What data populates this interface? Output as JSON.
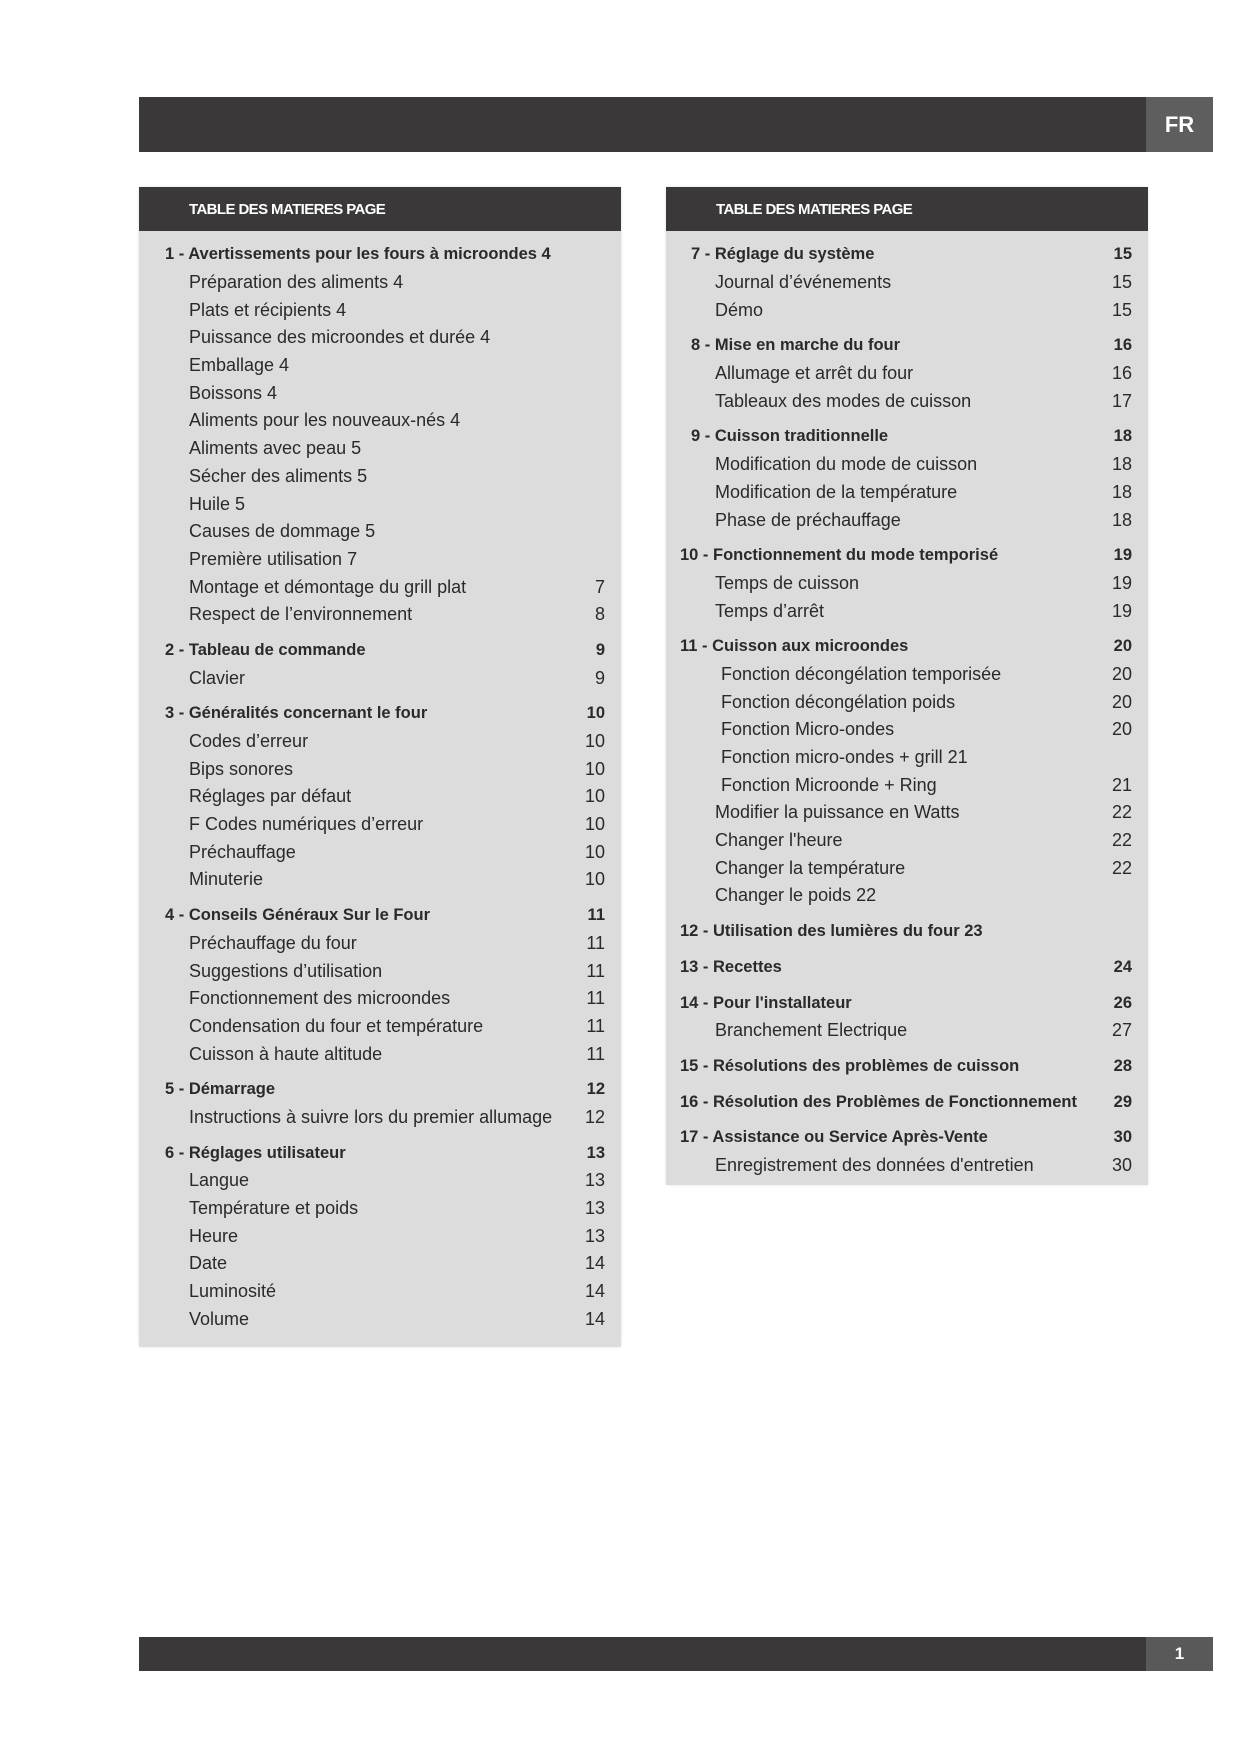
{
  "header": {
    "lang": "FR"
  },
  "footer": {
    "page": "1"
  },
  "left": {
    "title": "TABLE DES MATIERES PAGE",
    "groups": [
      {
        "rows": [
          {
            "t": "1 - Avertissements pour les fours à microondes 4",
            "n": "",
            "h": true
          },
          {
            "t": "Préparation des aliments 4",
            "n": ""
          },
          {
            "t": "Plats et récipients 4",
            "n": ""
          },
          {
            "t": "Puissance des microondes et durée 4",
            "n": ""
          },
          {
            "t": "Emballage 4",
            "n": ""
          },
          {
            "t": "Boissons 4",
            "n": ""
          },
          {
            "t": "Aliments pour les nouveaux-nés 4",
            "n": ""
          },
          {
            "t": "Aliments avec peau 5",
            "n": ""
          },
          {
            "t": "Sécher des aliments 5",
            "n": ""
          },
          {
            "t": "Huile 5",
            "n": ""
          },
          {
            "t": "Causes de dommage 5",
            "n": ""
          },
          {
            "t": "Première utilisation 7",
            "n": ""
          },
          {
            "t": "Montage et démontage du grill plat",
            "n": "7"
          },
          {
            "t": "Respect de l’environnement",
            "n": "8"
          }
        ]
      },
      {
        "rows": [
          {
            "t": "2 - Tableau de commande",
            "n": "9",
            "h": true
          },
          {
            "t": "Clavier",
            "n": "9"
          }
        ]
      },
      {
        "rows": [
          {
            "t": "3 - Généralités concernant le four",
            "n": "10",
            "h": true
          },
          {
            "t": "Codes d’erreur",
            "n": "10"
          },
          {
            "t": "Bips sonores",
            "n": "10"
          },
          {
            "t": "Réglages par défaut",
            "n": "10"
          },
          {
            "t": "F Codes numériques d’erreur",
            "n": "10"
          },
          {
            "t": "Préchauffage",
            "n": "10"
          },
          {
            "t": "Minuterie",
            "n": "10"
          }
        ]
      },
      {
        "rows": [
          {
            "t": "4 - Conseils Généraux Sur le Four",
            "n": "11",
            "h": true
          },
          {
            "t": "Préchauffage du four",
            "n": "11"
          },
          {
            "t": "Suggestions d’utilisation",
            "n": "11"
          },
          {
            "t": "Fonctionnement des microondes",
            "n": "11"
          },
          {
            "t": "Condensation du four et température",
            "n": "11"
          },
          {
            "t": "Cuisson à haute altitude",
            "n": "11"
          }
        ]
      },
      {
        "rows": [
          {
            "t": "5 - Démarrage",
            "n": "12",
            "h": true
          },
          {
            "t": "Instructions à suivre lors du premier allumage",
            "n": "12"
          }
        ]
      },
      {
        "rows": [
          {
            "t": "6 - Réglages utilisateur",
            "n": "13",
            "h": true
          },
          {
            "t": "Langue",
            "n": "13"
          },
          {
            "t": "Température et poids",
            "n": "13"
          },
          {
            "t": "Heure",
            "n": "13"
          },
          {
            "t": "Date",
            "n": "14"
          },
          {
            "t": "Luminosité",
            "n": "14"
          },
          {
            "t": "Volume",
            "n": "14"
          }
        ]
      }
    ]
  },
  "right": {
    "title": "TABLE DES MATIERES PAGE",
    "groups": [
      {
        "rows": [
          {
            "t": "7 - Réglage du système",
            "n": "15",
            "h": true
          },
          {
            "t": "Journal d’événements",
            "n": "15"
          },
          {
            "t": "Démo",
            "n": "15"
          }
        ]
      },
      {
        "rows": [
          {
            "t": "8 - Mise en marche du four",
            "n": "16",
            "h": true
          },
          {
            "t": "Allumage et arrêt du four",
            "n": "16"
          },
          {
            "t": "Tableaux des modes de cuisson",
            "n": "17"
          }
        ]
      },
      {
        "rows": [
          {
            "t": "9 - Cuisson traditionnelle",
            "n": "18",
            "h": true
          },
          {
            "t": "Modification du mode de cuisson",
            "n": "18"
          },
          {
            "t": "Modification de la température",
            "n": "18"
          },
          {
            "t": "Phase de préchauffage",
            "n": "18"
          }
        ]
      },
      {
        "rows": [
          {
            "t": "10 - Fonctionnement du mode temporisé",
            "n": "19",
            "h": true,
            "w": true
          },
          {
            "t": "Temps de cuisson",
            "n": "19"
          },
          {
            "t": "Temps d’arrêt",
            "n": "19"
          }
        ]
      },
      {
        "rows": [
          {
            "t": "11 - Cuisson aux microondes",
            "n": "20",
            "h": true,
            "w": true
          },
          {
            "t": "Fonction décongélation temporisée",
            "n": "20",
            "x": true
          },
          {
            "t": "Fonction décongélation poids",
            "n": "20",
            "x": true
          },
          {
            "t": "Fonction Micro-ondes",
            "n": "20",
            "x": true
          },
          {
            "t": "Fonction micro-ondes + grill   21",
            "n": "",
            "x": true
          },
          {
            "t": "Fonction Microonde + Ring",
            "n": "21",
            "x": true
          },
          {
            "t": "Modifier la puissance en Watts",
            "n": "22"
          },
          {
            "t": "Changer l'heure",
            "n": "22"
          },
          {
            "t": "Changer la température",
            "n": "22"
          },
          {
            "t": "Changer le poids 22",
            "n": ""
          }
        ]
      },
      {
        "rows": [
          {
            "t": "12 - Utilisation des lumières du four 23",
            "n": "",
            "h": true,
            "w": true
          }
        ]
      },
      {
        "rows": [
          {
            "t": "13 - Recettes",
            "n": "24",
            "h": true,
            "w": true
          }
        ]
      },
      {
        "rows": [
          {
            "t": "14 - Pour l'installateur",
            "n": "26",
            "h": true,
            "w": true
          },
          {
            "t": "Branchement Electrique",
            "n": "27"
          }
        ]
      },
      {
        "rows": [
          {
            "t": "15 - Résolutions des problèmes de cuisson",
            "n": "28",
            "h": true,
            "w": true
          }
        ]
      },
      {
        "rows": [
          {
            "t": "16 - Résolution des Problèmes de Fonctionnement",
            "n": "29",
            "h": true,
            "w": true
          }
        ]
      },
      {
        "rows": [
          {
            "t": "17 - Assistance ou Service Après-Vente",
            "n": "30",
            "h": true,
            "w": true
          },
          {
            "t": "Enregistrement des données d'entretien",
            "n": "30"
          }
        ]
      }
    ]
  }
}
